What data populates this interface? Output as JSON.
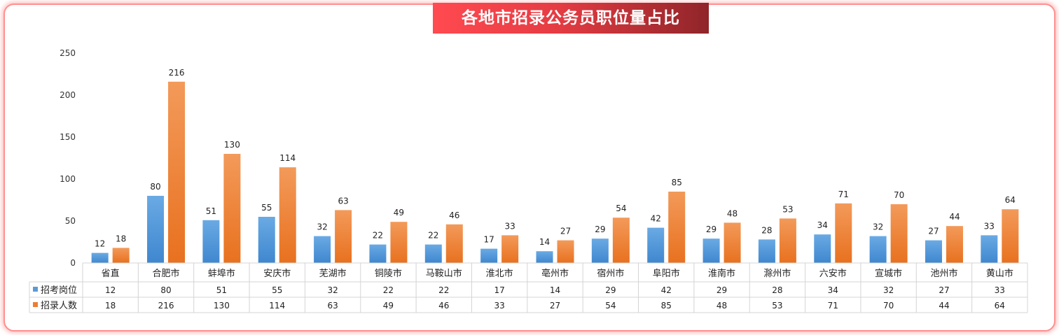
{
  "title": "各地市招录公务员职位量占比",
  "colors": {
    "series1": "#5b9bd5",
    "series2": "#ed7d31",
    "frame": "#ff9b9b",
    "title_bg": "#e53c43"
  },
  "chart_data": {
    "type": "bar",
    "title": "各地市招录公务员职位量占比",
    "categories": [
      "省直",
      "合肥市",
      "蚌埠市",
      "安庆市",
      "芜湖市",
      "铜陵市",
      "马鞍山市",
      "淮北市",
      "亳州市",
      "宿州市",
      "阜阳市",
      "淮南市",
      "滁州市",
      "六安市",
      "宣城市",
      "池州市",
      "黄山市"
    ],
    "series": [
      {
        "name": "招考岗位",
        "values": [
          12,
          80,
          51,
          55,
          32,
          22,
          22,
          17,
          14,
          29,
          42,
          29,
          28,
          34,
          32,
          27,
          33
        ]
      },
      {
        "name": "招录人数",
        "values": [
          18,
          216,
          130,
          114,
          63,
          49,
          46,
          33,
          27,
          54,
          85,
          48,
          53,
          71,
          70,
          44,
          64
        ]
      }
    ],
    "ylim": [
      0,
      250
    ],
    "yticks": [
      0,
      50,
      100,
      150,
      200,
      250
    ],
    "grid": false,
    "legend": "data-table",
    "data_labels": true
  }
}
